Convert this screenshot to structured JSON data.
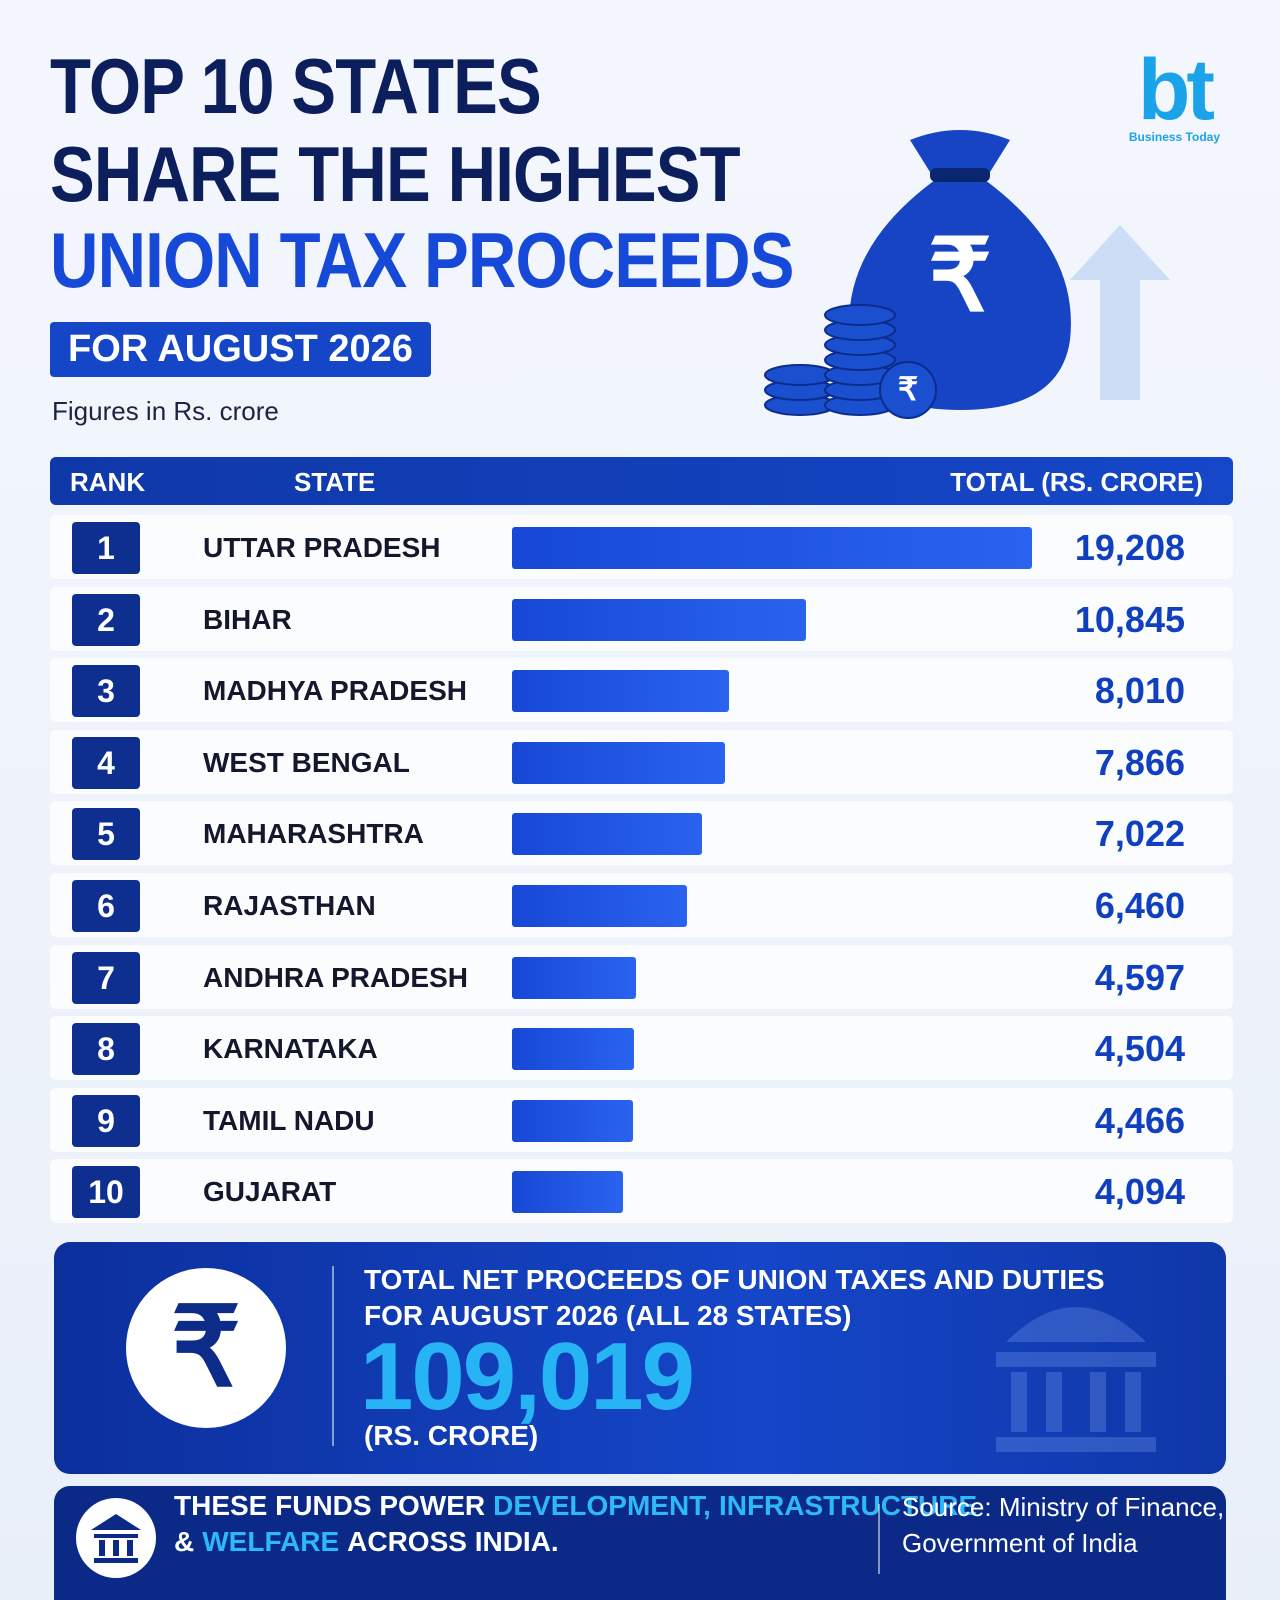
{
  "logo": {
    "mark": "bt",
    "name": "Business Today"
  },
  "header": {
    "title_lines": [
      "TOP 10 STATES",
      "SHARE THE HIGHEST",
      "UNION TAX PROCEEDS"
    ],
    "subtitle": "FOR AUGUST 2026",
    "note": "Figures in Rs. crore"
  },
  "currency_symbol": "₹",
  "chart_data": {
    "type": "bar",
    "columns": {
      "rank": "RANK",
      "category": "STATE",
      "value": "TOTAL (RS. CRORE)"
    },
    "ranks": [
      1,
      2,
      3,
      4,
      5,
      6,
      7,
      8,
      9,
      10
    ],
    "categories": [
      "UTTAR PRADESH",
      "BIHAR",
      "MADHYA PRADESH",
      "WEST BENGAL",
      "MAHARASHTRA",
      "RAJASTHAN",
      "ANDHRA PRADESH",
      "KARNATAKA",
      "TAMIL NADU",
      "GUJARAT"
    ],
    "values": [
      19208,
      10845,
      8010,
      7866,
      7022,
      6460,
      4597,
      4504,
      4466,
      4094
    ],
    "value_labels": [
      "19,208",
      "10,845",
      "8,010",
      "7,866",
      "7,022",
      "6,460",
      "4,597",
      "4,504",
      "4,466",
      "4,094"
    ],
    "color": "#1748d6"
  },
  "summary": {
    "lines": [
      "TOTAL NET PROCEEDS OF UNION TAXES AND DUTIES",
      "FOR AUGUST 2026 (ALL 28 STATES)"
    ],
    "total": "109,019",
    "unit": "(RS. CRORE)"
  },
  "footer": {
    "line1": [
      "THESE FUNDS POWER",
      "DEVELOPMENT,",
      "INFRASTRUCTURE"
    ],
    "line2": [
      "&",
      "WELFARE",
      "ACROSS INDIA."
    ],
    "source": [
      "Source: Ministry of Finance,",
      "Government of India"
    ]
  }
}
